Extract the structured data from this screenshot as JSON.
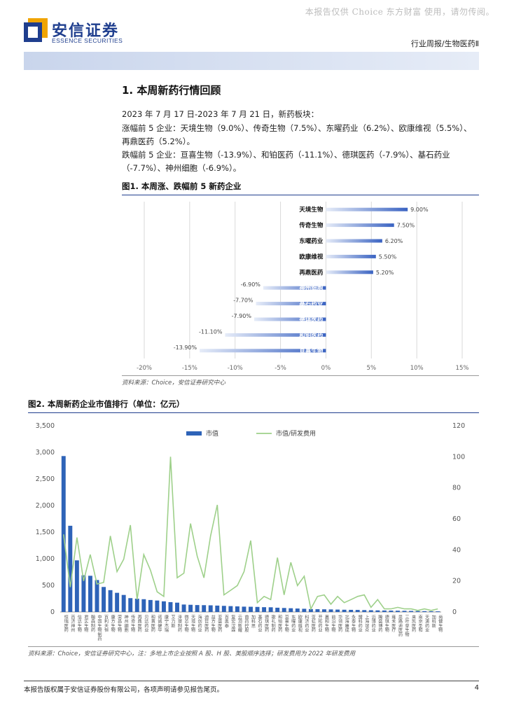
{
  "watermark": "本报告仅供 Choice 东方财富 使用，请勿传阅。",
  "brand": {
    "name_cn": "安信证券",
    "name_en": "ESSENCE SECURITIES",
    "color": "#1f3e8e",
    "accent": "#f0a400"
  },
  "report_type": "行业周报/生物医药Ⅱ",
  "section": {
    "title": "1. 本周新药行情回顾",
    "paragraphs": [
      "2023 年 7 月 17 日-2023 年 7 月 21 日，新药板块：",
      "涨幅前 5 企业：天境生物（9.0%）、传奇生物（7.5%）、东曜药业（6.2%）、欧康维视（5.5%）、再鼎医药（5.2%）。",
      "跌幅前 5 企业：亘喜生物（-13.9%）、和铂医药（-11.1%）、德琪医药（-7.9%）、基石药业（-7.7%）、神州细胞（-6.9%）。"
    ]
  },
  "fig1": {
    "title": "图1. 本周涨、跌幅前 5 新药企业",
    "source": "资料来源：Choice，安信证券研究中心",
    "chart_data": {
      "type": "bar",
      "orientation": "horizontal",
      "categories": [
        "天境生物",
        "传奇生物",
        "东曜药业",
        "欧康维视",
        "再鼎医药",
        "神州细胞",
        "基石药业",
        "德琪医药",
        "和铂医药",
        "亘喜生物"
      ],
      "values": [
        9.0,
        7.5,
        6.2,
        5.5,
        5.2,
        -6.9,
        -7.7,
        -7.9,
        -11.1,
        -13.9
      ],
      "value_labels": [
        "9.00%",
        "7.50%",
        "6.20%",
        "5.50%",
        "5.20%",
        "-6.90%",
        "-7.70%",
        "-7.90%",
        "-11.10%",
        "-13.90%"
      ],
      "xlim": [
        -20,
        15
      ],
      "xticks": [
        -20,
        -15,
        -10,
        -5,
        0,
        5,
        10,
        15
      ],
      "xtick_labels": [
        "-20%",
        "-15%",
        "-10%",
        "-5%",
        "0%",
        "5%",
        "10%",
        "15%"
      ],
      "grid": "vertical",
      "bar_color": "#3a63c2"
    }
  },
  "fig2": {
    "title": "图2. 本周新药企业市值排行（单位：亿元）",
    "source": "资料来源：Choice，安信证券研究中心，注：多地上市企业按照 A 股、H 股、美股顺序选择；研发费用为 2022 年研发费用",
    "chart_data": {
      "type": "bar",
      "categories": [
        "恒瑞医药",
        "百济神州",
        "信达生物",
        "君实生物",
        "翰森制药",
        "中国生物制药",
        "百利天恒",
        "康方生物",
        "荣昌生物",
        "神州细胞",
        "传奇生物",
        "再鼎医药",
        "贝达药业",
        "和黄医药",
        "诺诚健华",
        "康宁杰瑞",
        "艾力斯",
        "泽璟制药",
        "微芯生物",
        "天境生物",
        "海创药业",
        "迪哲医药",
        "益方生物",
        "亚盛医药",
        "百奥泰",
        "复宏汉霖",
        "云顶新耀",
        "首药控股",
        "加科思",
        "基石药业",
        "德琪医药",
        "歌礼制药",
        "和铂医药",
        "亘喜生物",
        "东曜药业",
        "欧康维视",
        "科济药业",
        "亚虹医药",
        "开拓药业",
        "嘉和生物",
        "前沿生物",
        "华领医药",
        "北海康成",
        "永泰生物",
        "盟科药业",
        "上海谊众",
        "迈博药业",
        "腾盛博药",
        "德琪生物",
        "雍禾医疗",
        "思路迪医药",
        "三叶草生物",
        "来凯医药",
        "南京圣和",
        "天演药业",
        "加科斯",
        "尚健生物"
      ],
      "labels_visible": "rotated vertical text, partially legible",
      "series": [
        {
          "name": "市值",
          "axis": "left",
          "type": "bar",
          "color": "#2e63b8",
          "values": [
            2930,
            1620,
            970,
            690,
            680,
            600,
            470,
            410,
            360,
            320,
            260,
            250,
            240,
            225,
            215,
            200,
            185,
            175,
            140,
            135,
            130,
            128,
            125,
            120,
            115,
            110,
            105,
            100,
            98,
            95,
            90,
            88,
            80,
            75,
            70,
            65,
            60,
            55,
            52,
            50,
            48,
            45,
            42,
            40,
            38,
            35,
            33,
            30,
            28,
            26,
            24,
            22,
            20,
            18,
            16,
            14,
            12
          ]
        },
        {
          "name": "市值/研发费用",
          "axis": "right",
          "type": "line",
          "color": "#9ed08a",
          "values": [
            50,
            16,
            48,
            20,
            37,
            18,
            19,
            49,
            26,
            34,
            56,
            8,
            37,
            27,
            13,
            10,
            100,
            22,
            25,
            57,
            36,
            22,
            49,
            69,
            11,
            14,
            17,
            26,
            46,
            6,
            10,
            8,
            35,
            11,
            32,
            17,
            23,
            2,
            10,
            11,
            5,
            10,
            6,
            8,
            10,
            11,
            3,
            8,
            2,
            2,
            3,
            2,
            2,
            1,
            2,
            1,
            2
          ]
        }
      ],
      "left_ylim": [
        0,
        3500
      ],
      "left_yticks": [
        0,
        500,
        1000,
        1500,
        2000,
        2500,
        3000,
        3500
      ],
      "left_ytick_labels": [
        "0",
        "500",
        "1,000",
        "1,500",
        "2,000",
        "2,500",
        "3,000",
        "3,500"
      ],
      "right_ylim": [
        0,
        120
      ],
      "right_yticks": [
        0,
        20,
        40,
        60,
        80,
        100,
        120
      ],
      "right_ytick_labels": [
        "0",
        "20",
        "40",
        "60",
        "80",
        "100",
        "120"
      ],
      "legend_placement": "top-center"
    }
  },
  "footer": {
    "text": "本报告版权属于安信证券股份有限公司，各项声明请参见报告尾页。",
    "page": "4"
  }
}
